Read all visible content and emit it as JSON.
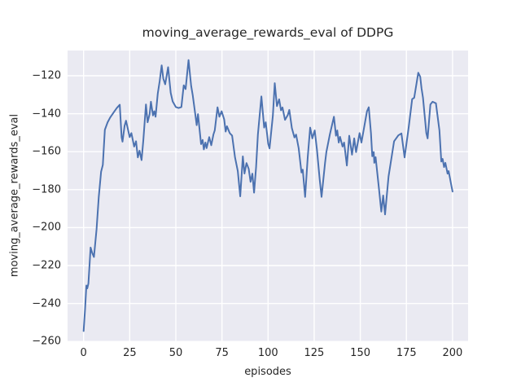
{
  "chart_data": {
    "type": "line",
    "title": "moving_average_rewards_eval of DDPG",
    "xlabel": "episodes",
    "ylabel": "moving_average_rewards_eval",
    "x_ticks": [
      0,
      25,
      50,
      75,
      100,
      125,
      150,
      175,
      200
    ],
    "y_ticks": [
      -120,
      -140,
      -160,
      -180,
      -200,
      -220,
      -240,
      -260
    ],
    "xlim": [
      -8.7,
      208.5
    ],
    "ylim": [
      -260.1,
      -106.7
    ],
    "grid": true,
    "legend_position": "none",
    "line_color": "#4c72b0",
    "plot_bg_color": "#eaeaf2",
    "grid_color": "#ffffff",
    "text_color": "#262626",
    "series": [
      {
        "name": "moving_average_rewards_eval",
        "points": [
          [
            0,
            -254.5
          ],
          [
            0.8,
            -243
          ],
          [
            1.5,
            -230.5
          ],
          [
            2,
            -232
          ],
          [
            2.6,
            -229.5
          ],
          [
            3.8,
            -210.5
          ],
          [
            4.7,
            -213.5
          ],
          [
            5.6,
            -215.5
          ],
          [
            7,
            -201
          ],
          [
            8.2,
            -184
          ],
          [
            9.5,
            -170.5
          ],
          [
            10.4,
            -167
          ],
          [
            11.5,
            -148.5
          ],
          [
            13,
            -144.5
          ],
          [
            14.4,
            -142
          ],
          [
            16.5,
            -139
          ],
          [
            18,
            -137
          ],
          [
            19.6,
            -135.3
          ],
          [
            20.6,
            -152.5
          ],
          [
            21.1,
            -154.7
          ],
          [
            22.2,
            -146.5
          ],
          [
            23,
            -143.7
          ],
          [
            25,
            -152.3
          ],
          [
            25.9,
            -150.2
          ],
          [
            27.4,
            -157.3
          ],
          [
            28.4,
            -154.5
          ],
          [
            29.4,
            -163
          ],
          [
            30.3,
            -159.5
          ],
          [
            31.4,
            -164.4
          ],
          [
            32.4,
            -153.8
          ],
          [
            33.8,
            -135.1
          ],
          [
            34.7,
            -144.5
          ],
          [
            35.8,
            -140.2
          ],
          [
            36.5,
            -133.7
          ],
          [
            37.6,
            -140.9
          ],
          [
            38.3,
            -138.7
          ],
          [
            39,
            -141.6
          ],
          [
            40.2,
            -129.4
          ],
          [
            41.2,
            -123
          ],
          [
            42.3,
            -114.5
          ],
          [
            43.2,
            -121.5
          ],
          [
            44.2,
            -124.5
          ],
          [
            45.8,
            -115.5
          ],
          [
            47.2,
            -129
          ],
          [
            48.3,
            -133.5
          ],
          [
            50,
            -136.5
          ],
          [
            51.5,
            -137
          ],
          [
            53,
            -136.5
          ],
          [
            54.3,
            -125
          ],
          [
            55.3,
            -127
          ],
          [
            56.9,
            -111.7
          ],
          [
            58.3,
            -125.3
          ],
          [
            59.2,
            -130.4
          ],
          [
            60.8,
            -142.3
          ],
          [
            61.3,
            -146
          ],
          [
            62,
            -140.2
          ],
          [
            63.7,
            -156
          ],
          [
            64.5,
            -153.8
          ],
          [
            65.2,
            -158.8
          ],
          [
            66,
            -155.2
          ],
          [
            66.7,
            -158.1
          ],
          [
            68.1,
            -152.3
          ],
          [
            69.2,
            -156.6
          ],
          [
            70.4,
            -150.9
          ],
          [
            71.1,
            -148.8
          ],
          [
            72.6,
            -136.6
          ],
          [
            73.6,
            -141.6
          ],
          [
            74.8,
            -138.7
          ],
          [
            76.2,
            -143
          ],
          [
            77,
            -149.4
          ],
          [
            77.7,
            -146.6
          ],
          [
            79.2,
            -150.2
          ],
          [
            80.5,
            -151.5
          ],
          [
            82.1,
            -163
          ],
          [
            83.6,
            -170.2
          ],
          [
            84.9,
            -183.5
          ],
          [
            86.3,
            -162.5
          ],
          [
            87.2,
            -171.5
          ],
          [
            88.3,
            -166
          ],
          [
            89.5,
            -169
          ],
          [
            90.5,
            -175.9
          ],
          [
            91.5,
            -171.6
          ],
          [
            92.4,
            -181.6
          ],
          [
            93.5,
            -168
          ],
          [
            94.5,
            -151
          ],
          [
            96.4,
            -130.9
          ],
          [
            97.9,
            -147.3
          ],
          [
            98.7,
            -144.5
          ],
          [
            100.1,
            -155.9
          ],
          [
            100.8,
            -158.3
          ],
          [
            102.6,
            -141
          ],
          [
            103.6,
            -123.9
          ],
          [
            104.8,
            -136
          ],
          [
            106,
            -132.4
          ],
          [
            107,
            -138.2
          ],
          [
            107.8,
            -136.7
          ],
          [
            109.2,
            -143.2
          ],
          [
            110.7,
            -140.7
          ],
          [
            111.5,
            -138
          ],
          [
            112.9,
            -147.5
          ],
          [
            114.3,
            -152.5
          ],
          [
            115.2,
            -151
          ],
          [
            116.6,
            -158.2
          ],
          [
            118.1,
            -171
          ],
          [
            118.8,
            -169.5
          ],
          [
            120.1,
            -183.8
          ],
          [
            121.5,
            -163
          ],
          [
            122.8,
            -147.3
          ],
          [
            124,
            -153
          ],
          [
            125.3,
            -148.8
          ],
          [
            126.5,
            -158.8
          ],
          [
            128,
            -174.5
          ],
          [
            129,
            -183.8
          ],
          [
            130.9,
            -165.9
          ],
          [
            131.6,
            -160.2
          ],
          [
            133.5,
            -150.9
          ],
          [
            135.7,
            -141.6
          ],
          [
            136.8,
            -151.6
          ],
          [
            137.5,
            -148.8
          ],
          [
            138.3,
            -155.2
          ],
          [
            139,
            -152.2
          ],
          [
            140.4,
            -157.3
          ],
          [
            141.2,
            -155.2
          ],
          [
            142.7,
            -167.3
          ],
          [
            144,
            -151.6
          ],
          [
            145.5,
            -161.6
          ],
          [
            146.7,
            -153
          ],
          [
            147.7,
            -160.2
          ],
          [
            149.6,
            -150.2
          ],
          [
            150.6,
            -155.2
          ],
          [
            153.6,
            -138.7
          ],
          [
            154.6,
            -136.6
          ],
          [
            155.8,
            -150.2
          ],
          [
            156.5,
            -162.4
          ],
          [
            157.3,
            -160.2
          ],
          [
            157.6,
            -165.9
          ],
          [
            158.3,
            -162.9
          ],
          [
            160.2,
            -180.2
          ],
          [
            161.4,
            -191.6
          ],
          [
            162.4,
            -183.1
          ],
          [
            163.4,
            -193.1
          ],
          [
            165.3,
            -173.1
          ],
          [
            168.3,
            -154.5
          ],
          [
            170.6,
            -151.4
          ],
          [
            172.3,
            -150.4
          ],
          [
            174,
            -163
          ],
          [
            176.2,
            -147.3
          ],
          [
            178.1,
            -132.3
          ],
          [
            179.2,
            -131.6
          ],
          [
            181.4,
            -118.4
          ],
          [
            182.5,
            -120.5
          ],
          [
            183.2,
            -126.6
          ],
          [
            184,
            -131.6
          ],
          [
            185.8,
            -150.2
          ],
          [
            186.5,
            -153
          ],
          [
            188,
            -135.1
          ],
          [
            189.2,
            -133.7
          ],
          [
            191,
            -134.5
          ],
          [
            192.9,
            -148.8
          ],
          [
            193.9,
            -165.2
          ],
          [
            194.6,
            -163.8
          ],
          [
            195.4,
            -168.1
          ],
          [
            196.1,
            -165.9
          ],
          [
            197.3,
            -171.6
          ],
          [
            197.9,
            -170.2
          ],
          [
            199.3,
            -177.5
          ],
          [
            200,
            -181
          ]
        ]
      }
    ]
  }
}
